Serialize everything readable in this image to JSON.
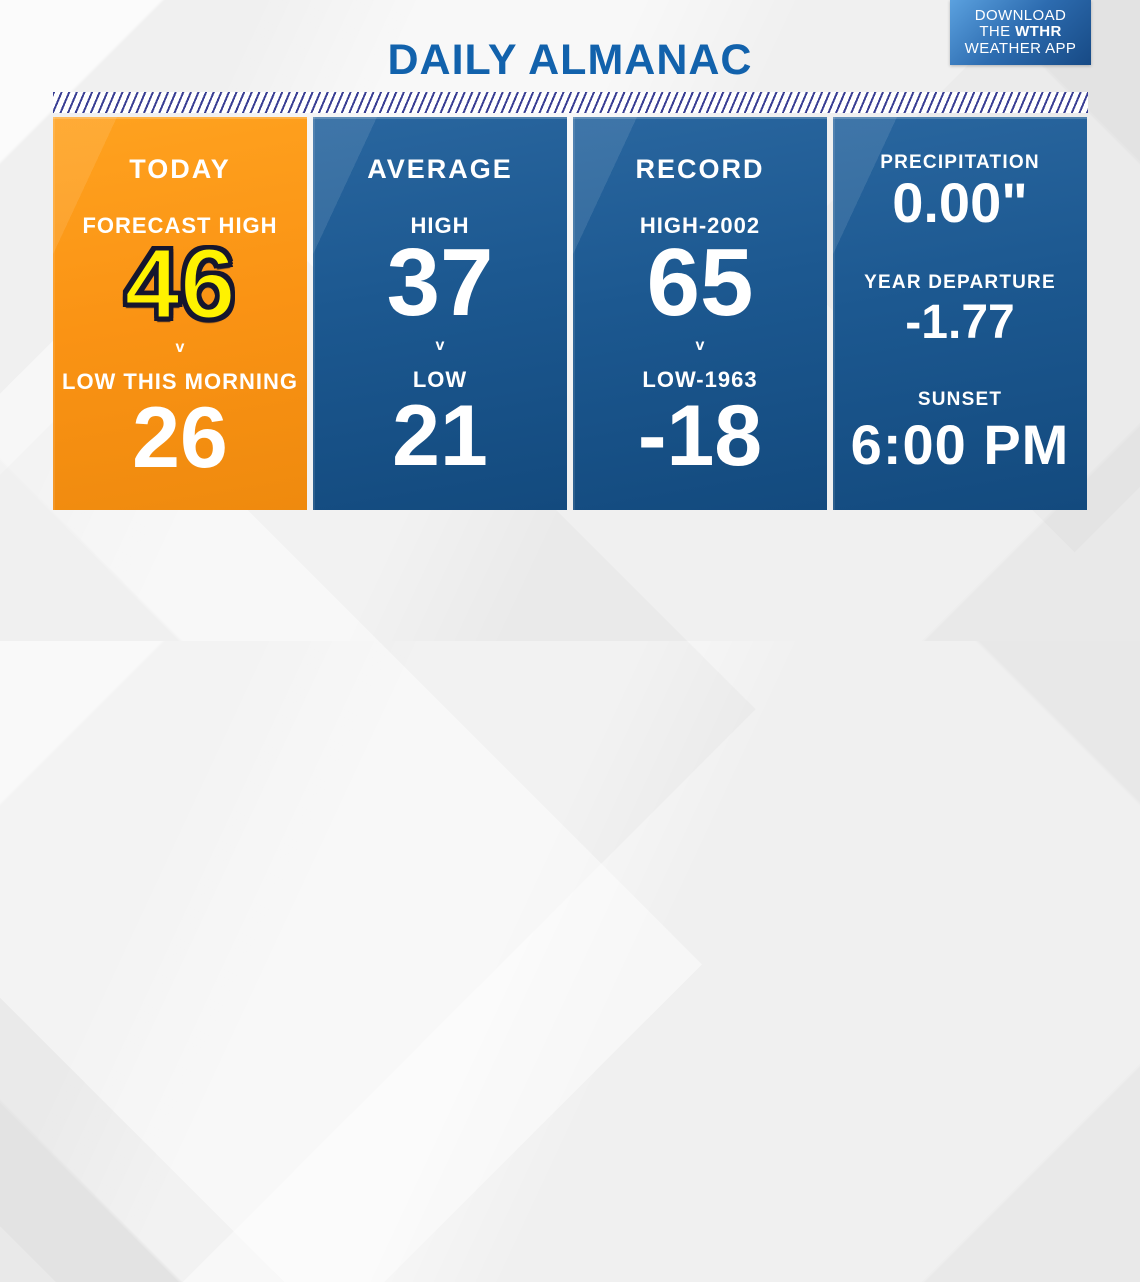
{
  "header": {
    "title": "DAILY ALMANAC",
    "app_badge": {
      "line1": "DOWNLOAD",
      "line2_prefix": "THE ",
      "line2_bold": "WTHR",
      "line3": "WEATHER APP"
    }
  },
  "colors": {
    "title_blue": "#1262ac",
    "card_blue": "#1c5890",
    "card_orange": "#fa9314",
    "highlight_yellow": "#fff200",
    "stripe_navy": "#3a3f94",
    "background_gray": "#f0f0f0"
  },
  "cards": {
    "today": {
      "title": "TODAY",
      "high_label": "FORECAST HIGH",
      "high_value": "46",
      "divider_glyph": "v",
      "low_label": "LOW THIS MORNING",
      "low_value": "26"
    },
    "average": {
      "title": "AVERAGE",
      "high_label": "HIGH",
      "high_value": "37",
      "divider_glyph": "v",
      "low_label": "LOW",
      "low_value": "21"
    },
    "record": {
      "title": "RECORD",
      "high_label": "HIGH-2002",
      "high_value": "65",
      "divider_glyph": "v",
      "low_label": "LOW-1963",
      "low_value": "-18"
    },
    "stats": {
      "precip_label": "PRECIPITATION",
      "precip_value": "0.00\"",
      "departure_label": "YEAR DEPARTURE",
      "departure_value": "-1.77",
      "sunset_label": "SUNSET",
      "sunset_value": "6:00 PM"
    }
  }
}
